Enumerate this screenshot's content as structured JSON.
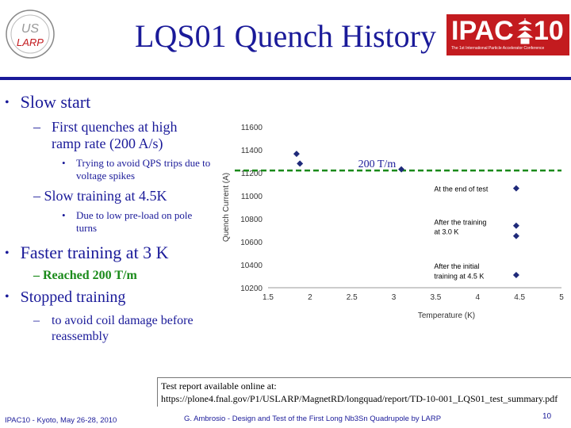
{
  "header": {
    "title": "LQS01 Quench History",
    "logo_left_text_1": "US",
    "logo_left_text_2": "LARP",
    "logo_right_text": "IPAC",
    "logo_right_num": "10",
    "logo_right_sub": "The 1st International Particle Accelerator Conference"
  },
  "bullets": {
    "slow_start": "Slow start",
    "slow_sub1": "First quenches at high ramp rate (200 A/s)",
    "slow_sub1_note": "Trying to avoid QPS trips due to voltage spikes",
    "slow_sub2": "Slow training at 4.5K",
    "slow_sub2_note": "Due to low pre-load on pole turns",
    "faster": "Faster training at 3 K",
    "faster_sub": "Reached 200 T/m",
    "stopped": "Stopped training",
    "stopped_sub": "to avoid coil damage before reassembly"
  },
  "report": {
    "line1": "Test report available online at:",
    "line2": "https://plone4.fnal.gov/P1/USLARP/MagnetRD/longquad/report/TD-10-001_LQS01_test_summary.pdf"
  },
  "footer": {
    "left": "IPAC10 - Kyoto, May 26-28, 2010",
    "center": "G. Ambrosio - Design and Test of the First Long Nb3Sn Quadrupole by LARP",
    "page": "10"
  },
  "colors": {
    "title": "#1a1a99",
    "point": "#1f2a7a",
    "reference_line": "#1a8a1a",
    "ipac_red": "#c31b1f"
  },
  "chart_data": {
    "type": "scatter",
    "xlabel": "Temperature (K)",
    "ylabel": "Quench Current (A)",
    "xlim": [
      1.5,
      5
    ],
    "ylim": [
      10200,
      11600
    ],
    "xticks": [
      "1.5",
      "2",
      "2.5",
      "3",
      "3.5",
      "4",
      "4.5",
      "5"
    ],
    "yticks": [
      "10200",
      "10400",
      "10600",
      "10800",
      "11000",
      "11200",
      "11400",
      "11600"
    ],
    "grid": false,
    "series": [
      {
        "points": [
          {
            "x": 1.84,
            "y": 11365
          },
          {
            "x": 1.88,
            "y": 11280
          },
          {
            "x": 3.09,
            "y": 11230
          },
          {
            "x": 4.46,
            "y": 11065
          },
          {
            "x": 4.46,
            "y": 10740
          },
          {
            "x": 4.46,
            "y": 10650
          },
          {
            "x": 4.46,
            "y": 10310
          }
        ]
      }
    ],
    "reference_line": {
      "y": 11220,
      "label": "200 T/m"
    },
    "annotations": [
      {
        "text": "At the end of test",
        "x": 3.48,
        "y": 11060
      },
      {
        "text": "After the training",
        "x": 3.48,
        "y": 10770
      },
      {
        "text": "at 3.0 K",
        "x": 3.48,
        "y": 10685
      },
      {
        "text": "After the initial",
        "x": 3.48,
        "y": 10385
      },
      {
        "text": "training at 4.5 K",
        "x": 3.48,
        "y": 10300
      }
    ]
  }
}
